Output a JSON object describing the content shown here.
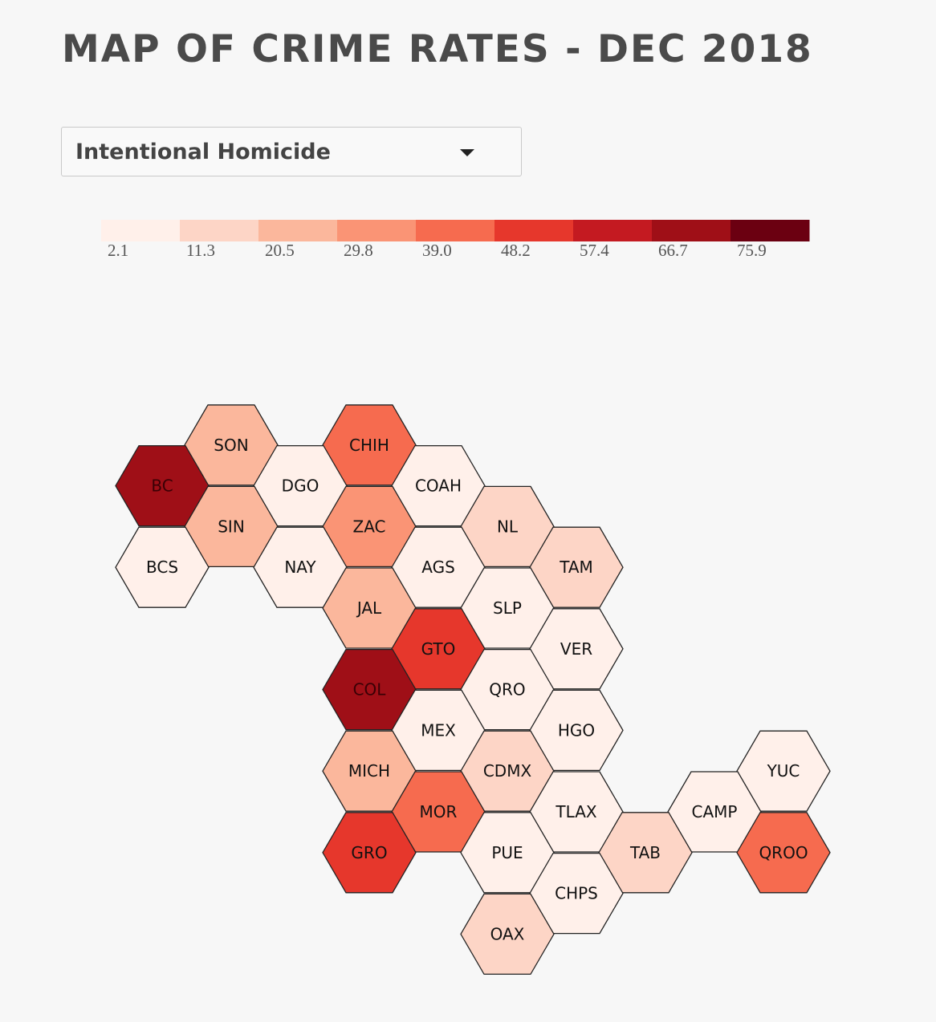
{
  "title": "MAP OF CRIME RATES - DEC 2018",
  "dropdown": {
    "selected": "Intentional Homicide",
    "icon": "caret-down-icon"
  },
  "legend": {
    "labels": [
      "2.1",
      "11.3",
      "20.5",
      "29.8",
      "39.0",
      "48.2",
      "57.4",
      "66.7",
      "75.9"
    ],
    "colors": [
      "#fff0ea",
      "#fdd5c6",
      "#fbb79c",
      "#fa9475",
      "#f66b4f",
      "#e6372c",
      "#c41a21",
      "#9f0f17",
      "#6b0011"
    ]
  },
  "chart_data": {
    "type": "hexbin-map",
    "metric": "Intentional Homicide",
    "states": [
      {
        "abbr": "SON",
        "value": 24
      },
      {
        "abbr": "CHIH",
        "value": 42
      },
      {
        "abbr": "BC",
        "value": 75
      },
      {
        "abbr": "DGO",
        "value": 10
      },
      {
        "abbr": "COAH",
        "value": 3
      },
      {
        "abbr": "SIN",
        "value": 24
      },
      {
        "abbr": "ZAC",
        "value": 35
      },
      {
        "abbr": "NL",
        "value": 14
      },
      {
        "abbr": "BCS",
        "value": 3
      },
      {
        "abbr": "NAY",
        "value": 9
      },
      {
        "abbr": "AGS",
        "value": 4
      },
      {
        "abbr": "TAM",
        "value": 15
      },
      {
        "abbr": "JAL",
        "value": 22
      },
      {
        "abbr": "SLP",
        "value": 9
      },
      {
        "abbr": "GTO",
        "value": 51
      },
      {
        "abbr": "VER",
        "value": 11
      },
      {
        "abbr": "COL",
        "value": 74
      },
      {
        "abbr": "QRO",
        "value": 9
      },
      {
        "abbr": "MEX",
        "value": 11
      },
      {
        "abbr": "HGO",
        "value": 4
      },
      {
        "abbr": "MICH",
        "value": 23
      },
      {
        "abbr": "CDMX",
        "value": 15
      },
      {
        "abbr": "YUC",
        "value": 3
      },
      {
        "abbr": "MOR",
        "value": 42
      },
      {
        "abbr": "TLAX",
        "value": 5
      },
      {
        "abbr": "CAMP",
        "value": 5
      },
      {
        "abbr": "GRO",
        "value": 53
      },
      {
        "abbr": "PUE",
        "value": 11
      },
      {
        "abbr": "TAB",
        "value": 16
      },
      {
        "abbr": "QROO",
        "value": 42
      },
      {
        "abbr": "CHPS",
        "value": 3
      },
      {
        "abbr": "OAX",
        "value": 17
      }
    ]
  }
}
